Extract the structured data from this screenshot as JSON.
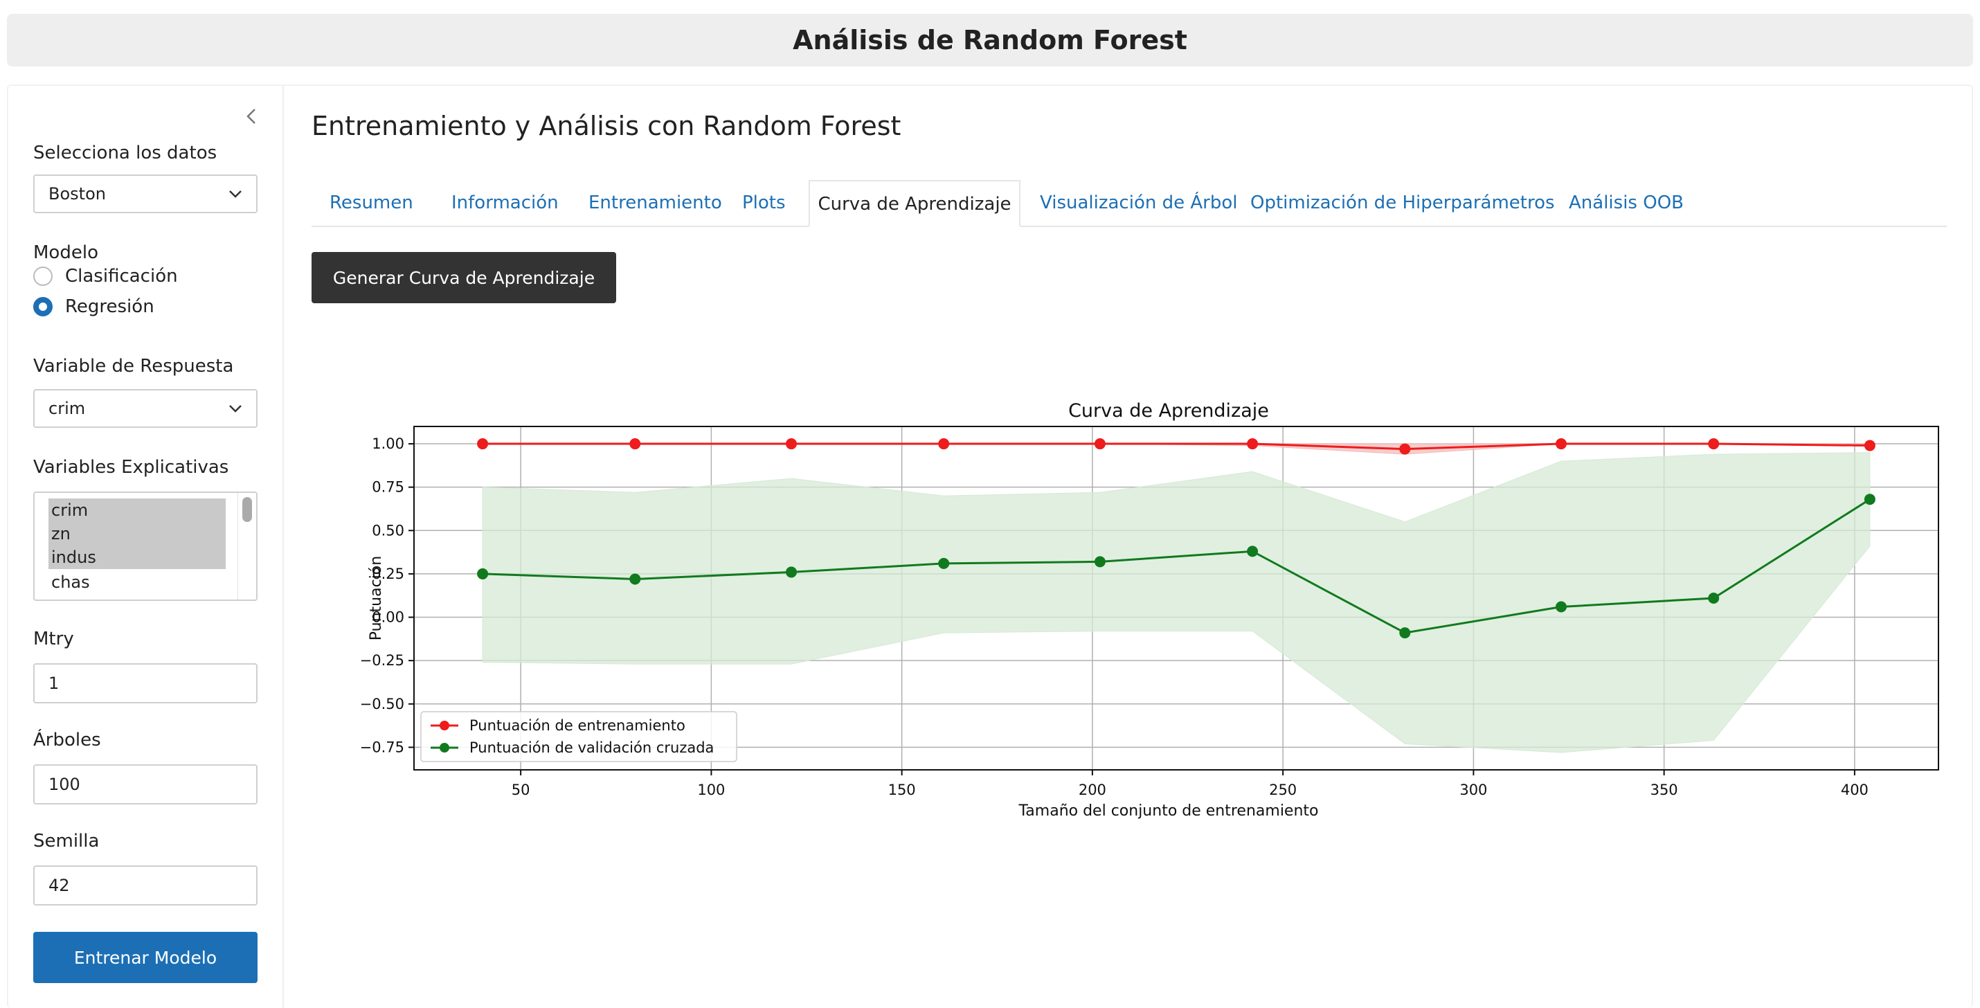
{
  "app": {
    "title": "Análisis de Random Forest"
  },
  "sidebar": {
    "dataset_label": "Selecciona los datos",
    "dataset_value": "Boston",
    "model_label": "Modelo",
    "model_options": [
      "Clasificación",
      "Regresión"
    ],
    "model_selected": "Regresión",
    "response_label": "Variable de Respuesta",
    "response_value": "crim",
    "explanatory_label": "Variables Explicativas",
    "explanatory_options": [
      "crim",
      "zn",
      "indus",
      "chas"
    ],
    "explanatory_selected": [
      "crim",
      "zn",
      "indus"
    ],
    "mtry_label": "Mtry",
    "mtry_value": "1",
    "trees_label": "Árboles",
    "trees_value": "100",
    "seed_label": "Semilla",
    "seed_value": "42",
    "train_button": "Entrenar Modelo"
  },
  "main": {
    "title": "Entrenamiento y Análisis con Random Forest",
    "tabs": [
      {
        "label": "Resumen"
      },
      {
        "label": "Información"
      },
      {
        "label": "Entrenamiento"
      },
      {
        "label": "Plots"
      },
      {
        "label": "Curva de Aprendizaje"
      },
      {
        "label": "Visualización de Árbol"
      },
      {
        "label": "Optimización de Hiperparámetros"
      },
      {
        "label": "Análisis OOB"
      }
    ],
    "active_tab": "Curva de Aprendizaje",
    "generate_button": "Generar Curva de Aprendizaje"
  },
  "colors": {
    "accent": "#1c6fb5",
    "train": "#ee1c1c",
    "cv": "#117a1e",
    "cv_band": "#d6ead5",
    "train_band": "#f5b8b8"
  },
  "chart_data": {
    "type": "line",
    "title": "Curva de Aprendizaje",
    "xlabel": "Tamaño del conjunto de entrenamiento",
    "ylabel": "Puntuación",
    "xlim": [
      22,
      422
    ],
    "ylim": [
      -0.88,
      1.1
    ],
    "xticks": [
      50,
      100,
      150,
      200,
      250,
      300,
      350,
      400
    ],
    "yticks": [
      1.0,
      0.75,
      0.5,
      0.25,
      0.0,
      -0.25,
      -0.5,
      -0.75
    ],
    "xtick_labels": [
      "50",
      "100",
      "150",
      "200",
      "250",
      "300",
      "350",
      "400"
    ],
    "ytick_labels": [
      "1.00",
      "0.75",
      "0.50",
      "0.25",
      "0.00",
      "−0.25",
      "−0.50",
      "−0.75"
    ],
    "grid": true,
    "legend_position": "lower-left",
    "x": [
      40,
      80,
      121,
      161,
      202,
      242,
      282,
      323,
      363,
      404
    ],
    "series": [
      {
        "name": "Puntuación de entrenamiento",
        "values": [
          1.0,
          1.0,
          1.0,
          1.0,
          1.0,
          1.0,
          0.97,
          1.0,
          1.0,
          0.99
        ],
        "band_upper": [
          1.0,
          1.0,
          1.0,
          1.0,
          1.0,
          1.0,
          1.0,
          1.0,
          1.0,
          1.0
        ],
        "band_lower": [
          1.0,
          1.0,
          1.0,
          1.0,
          1.0,
          0.99,
          0.94,
          1.0,
          1.0,
          0.99
        ]
      },
      {
        "name": "Puntuación de validación cruzada",
        "values": [
          0.25,
          0.22,
          0.26,
          0.31,
          0.32,
          0.38,
          -0.09,
          0.06,
          0.11,
          0.68
        ],
        "band_upper": [
          0.75,
          0.72,
          0.8,
          0.7,
          0.72,
          0.84,
          0.55,
          0.9,
          0.94,
          0.95
        ],
        "band_lower": [
          -0.26,
          -0.27,
          -0.27,
          -0.09,
          -0.08,
          -0.08,
          -0.73,
          -0.78,
          -0.71,
          0.41
        ]
      }
    ]
  }
}
